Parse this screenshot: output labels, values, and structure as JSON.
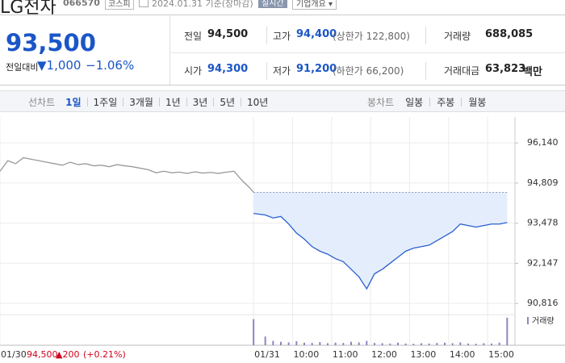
{
  "header": {
    "name": "LG전자",
    "code": "066570",
    "market": "코스피",
    "date": "2024.01.31 기준(장마감)",
    "realtime": "실시간",
    "company": "기업개요"
  },
  "quote": {
    "price": "93,500",
    "change_label": "전일대비",
    "change": "▼1,000",
    "rate": "−1.06%"
  },
  "stats": [
    {
      "label": "전일",
      "value": "94,500"
    },
    {
      "label": "고가",
      "value": "94,400",
      "note": "(상한가 122,800)"
    },
    {
      "label": "거래량",
      "value": "688,085"
    },
    {
      "label": "시가",
      "value": "94,300"
    },
    {
      "label": "저가",
      "value": "91,200",
      "note": "(하한가 66,200)"
    },
    {
      "label": "거래대금",
      "value": "63,823",
      "unit": "백만"
    }
  ],
  "tabs": {
    "line_label": "선차트",
    "line": [
      "1일",
      "1주일",
      "3개월",
      "1년",
      "3년",
      "5년",
      "10년"
    ],
    "candle_label": "봉차트",
    "candle": [
      "일봉",
      "주봉",
      "월봉"
    ]
  },
  "chart_data": {
    "type": "line",
    "series": [
      {
        "color": "#9a9a9a",
        "x": [
          -6.5,
          -6.3,
          -6.1,
          -5.9,
          -5.7,
          -5.5,
          -5.3,
          -5.1,
          -4.9,
          -4.7,
          -4.5,
          -4.3,
          -4.1,
          -3.9,
          -3.7,
          -3.5,
          -3.3,
          -3.1,
          -2.9,
          -2.7,
          -2.5,
          -2.3,
          -2.1,
          -1.9,
          -1.7,
          -1.5,
          -1.3,
          -1.1,
          -0.9,
          -0.7,
          -0.5,
          -0.3,
          -0.1,
          0
        ],
        "values": [
          95200,
          95550,
          95450,
          95650,
          95600,
          95550,
          95500,
          95450,
          95400,
          95500,
          95420,
          95450,
          95380,
          95400,
          95350,
          95420,
          95380,
          95350,
          95300,
          95250,
          95150,
          95200,
          95150,
          95170,
          95130,
          95180,
          95140,
          95160,
          95130,
          95170,
          95200,
          94900,
          94650,
          94500
        ]
      },
      {
        "color": "#2b5fd0",
        "fill": "#e4edfb",
        "x": [
          0,
          0.3,
          0.5,
          0.7,
          0.9,
          1.1,
          1.3,
          1.5,
          1.7,
          1.9,
          2.1,
          2.3,
          2.5,
          2.7,
          2.9,
          3.1,
          3.3,
          3.5,
          3.7,
          3.9,
          4.1,
          4.3,
          4.5,
          4.7,
          4.9,
          5.1,
          5.3,
          5.5,
          5.7,
          5.9,
          6.1,
          6.3,
          6.5
        ],
        "values": [
          93800,
          93750,
          93650,
          93700,
          93450,
          93150,
          92950,
          92700,
          92550,
          92450,
          92300,
          92200,
          91950,
          91700,
          91300,
          91800,
          91950,
          92150,
          92350,
          92550,
          92650,
          92700,
          92750,
          92900,
          93050,
          93200,
          93450,
          93400,
          93350,
          93400,
          93450,
          93450,
          93500
        ]
      }
    ],
    "reference_line": 94500,
    "xlim": [
      -6.5,
      6.7
    ],
    "xticks": [
      {
        "value": -6.5,
        "label": "01/30"
      },
      {
        "value": 0,
        "label": "01/31"
      },
      {
        "value": 1,
        "label": "10:00"
      },
      {
        "value": 2,
        "label": "11:00"
      },
      {
        "value": 3,
        "label": "12:00"
      },
      {
        "value": 4,
        "label": "13:00"
      },
      {
        "value": 5,
        "label": "14:00"
      },
      {
        "value": 6,
        "label": "15:00"
      }
    ],
    "ylim": [
      90500,
      97000
    ],
    "yticks": [
      {
        "value": 96140,
        "label": "96,140"
      },
      {
        "value": 94809,
        "label": "94,809"
      },
      {
        "value": 93478,
        "label": "93,478"
      },
      {
        "value": 92147,
        "label": "92,147"
      },
      {
        "value": 90816,
        "label": "90,816"
      }
    ],
    "grid": true,
    "prev_note": {
      "close": "94,500",
      "change": "▲200",
      "rate": "(+0.21%)"
    },
    "volume": {
      "label": "거래량",
      "color": "#8e84c4",
      "vlim": [
        0,
        100000
      ],
      "x": [
        0,
        0.3,
        0.5,
        0.7,
        0.9,
        1.1,
        1.3,
        1.5,
        1.7,
        1.9,
        2.1,
        2.3,
        2.5,
        2.7,
        2.9,
        3.1,
        3.3,
        3.5,
        3.7,
        3.9,
        4.1,
        4.3,
        4.5,
        4.7,
        4.9,
        5.1,
        5.3,
        5.5,
        5.7,
        5.9,
        6.1,
        6.3,
        6.5
      ],
      "values": [
        90000,
        30000,
        15000,
        12000,
        10000,
        14000,
        9000,
        8000,
        11000,
        7000,
        9000,
        8000,
        12000,
        10000,
        15000,
        8000,
        7000,
        6000,
        9000,
        6000,
        5000,
        7000,
        6000,
        8000,
        9000,
        7000,
        10000,
        6000,
        5000,
        7000,
        6000,
        9000,
        95000
      ]
    }
  }
}
